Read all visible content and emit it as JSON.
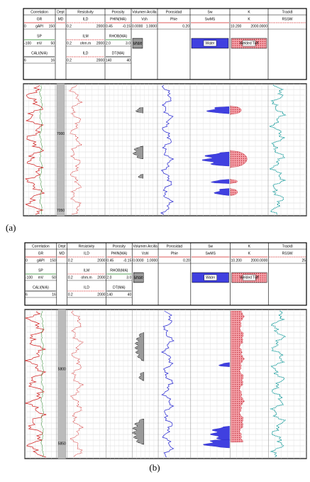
{
  "panels": [
    {
      "label": "(a)",
      "depths": [
        "7000",
        "7050"
      ],
      "tracks": [
        {
          "title": "Correlation",
          "items": [
            {
              "name": "GR",
              "left": "0",
              "unit": "gAPI",
              "right": "150"
            },
            {
              "name": "SP",
              "left": "-100",
              "unit": "mV",
              "right": "50"
            },
            {
              "name": "CALI(N/A)",
              "left": "6",
              "right": "16"
            }
          ]
        },
        {
          "title": "Dept",
          "items": [
            {
              "name": "MD"
            }
          ]
        },
        {
          "title": "Resistivity",
          "items": [
            {
              "name": "ILD",
              "left": "0.2",
              "right": "2000"
            },
            {
              "name": "ILM",
              "left": "0.2",
              "unit": "ohm.m",
              "right": "2000"
            },
            {
              "name": "ILD",
              "left": "0.2",
              "right": "2000"
            }
          ]
        },
        {
          "title": "Porosity",
          "items": [
            {
              "name": "PHIN(MA)",
              "left": "0.45",
              "right": "-0.15"
            },
            {
              "name": "RHOB(MA)",
              "left": "2.0",
              "right": "3.0"
            },
            {
              "name": "DT(MA)",
              "left": "140",
              "right": "40"
            }
          ]
        },
        {
          "title": "Volumen Arcilla",
          "items": [
            {
              "name": "Vsh",
              "left": "0.0000",
              "right": "1.0000"
            }
          ],
          "legend": "Shale"
        },
        {
          "title": "Porosidad",
          "items": [
            {
              "name": "Phie",
              "right": "0.20"
            }
          ]
        },
        {
          "title": "Sw",
          "items": [
            {
              "name": "SwMS"
            }
          ],
          "legend": "Water"
        },
        {
          "title": "K",
          "items": [
            {
              "name": "K",
              "left": "10.200",
              "right": "2000.0000"
            }
          ],
          "legend": "Welded Tuff"
        },
        {
          "title": "Track8",
          "items": [
            {
              "name": "RSSW"
            }
          ]
        }
      ]
    },
    {
      "label": "(b)",
      "depths": [
        "5800",
        "5850"
      ],
      "tracks": [
        {
          "title": "Correlation",
          "items": [
            {
              "name": "GR",
              "left": "0",
              "unit": "gAPI",
              "right": "150"
            },
            {
              "name": "SP",
              "left": "-100",
              "unit": "mV",
              "right": "50"
            },
            {
              "name": "CALI(N/A)",
              "left": "6",
              "right": "16"
            }
          ]
        },
        {
          "title": "Dept",
          "items": [
            {
              "name": "MD"
            }
          ]
        },
        {
          "title": "Resistivity",
          "items": [
            {
              "name": "ILD",
              "left": "0.2",
              "right": "2000"
            },
            {
              "name": "ILM",
              "left": "0.2",
              "unit": "ohm.m",
              "right": "2000"
            },
            {
              "name": "ILD",
              "left": "0.2",
              "right": "2000"
            }
          ]
        },
        {
          "title": "Porosity",
          "items": [
            {
              "name": "PHIN(MA)",
              "left": "0.45",
              "right": "-0.15"
            },
            {
              "name": "RHOB(MA)",
              "left": "2.0",
              "right": "3.0"
            },
            {
              "name": "DT(MA)",
              "left": "140",
              "right": "40"
            }
          ]
        },
        {
          "title": "Volumen Arcilla",
          "items": [
            {
              "name": "Vshl",
              "left": "0.0000",
              "right": "1.0000"
            }
          ],
          "legend": "Shale"
        },
        {
          "title": "Porosidad",
          "items": [
            {
              "name": "Phie",
              "right": "0.20"
            }
          ]
        },
        {
          "title": "Sw",
          "items": [
            {
              "name": "SwMS"
            }
          ],
          "legend": "Water"
        },
        {
          "title": "K",
          "items": [
            {
              "name": "K",
              "left": "10.200",
              "right": "2000.0000"
            }
          ],
          "legend": "Welded Tuff"
        },
        {
          "title": "Track8",
          "items": [
            {
              "name": "RSSW",
              "right": "25"
            }
          ]
        }
      ]
    }
  ]
}
